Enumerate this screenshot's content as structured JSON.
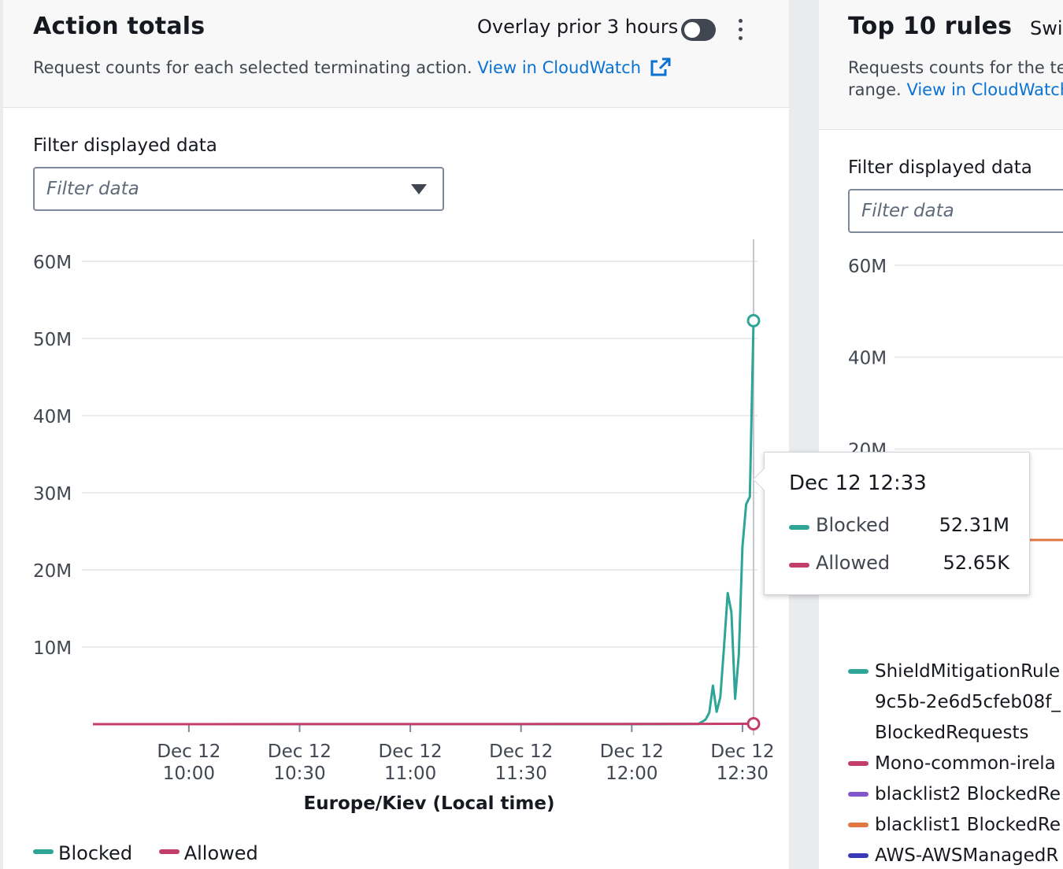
{
  "left_panel": {
    "title": "Action totals",
    "overlay_label": "Overlay prior 3 hours",
    "overlay_enabled": false,
    "description": "Request counts for each selected terminating action.",
    "link_text": "View in CloudWatch",
    "filter_label": "Filter displayed data",
    "filter_placeholder": "Filter data",
    "legend": [
      {
        "name": "Blocked",
        "color": "#2ea597"
      },
      {
        "name": "Allowed",
        "color": "#c33d69"
      }
    ]
  },
  "tooltip": {
    "title": "Dec 12 12:33",
    "rows": [
      {
        "label": "Blocked",
        "value": "52.31M",
        "color": "#2ea597"
      },
      {
        "label": "Allowed",
        "value": "52.65K",
        "color": "#c33d69"
      }
    ]
  },
  "right_panel": {
    "title": "Top 10 rules",
    "switch_text": "Swi",
    "description_line1": "Requests counts for the ter",
    "description_line2": "range.",
    "link_text": "View in CloudWatch",
    "filter_label": "Filter displayed data",
    "filter_placeholder": "Filter data",
    "legend": [
      {
        "lines": [
          "ShieldMitigationRule",
          "9c5b-2e6d5cfeb08f_",
          "BlockedRequests"
        ],
        "color": "#2ea597"
      },
      {
        "lines": [
          "Mono-common-irela"
        ],
        "color": "#c33d69"
      },
      {
        "lines": [
          "blacklist2 BlockedRe"
        ],
        "color": "#8456ce"
      },
      {
        "lines": [
          "blacklist1 BlockedRe"
        ],
        "color": "#e07941"
      },
      {
        "lines": [
          "AWS-AWSManagedR"
        ],
        "color": "#3a3ab8"
      }
    ]
  },
  "chart_data": [
    {
      "type": "line",
      "title": "Action totals",
      "xlabel": "Europe/Kiev (Local time)",
      "ylabel": "",
      "ylim": [
        0,
        60000000
      ],
      "y_ticks": [
        "10M",
        "20M",
        "30M",
        "40M",
        "50M",
        "60M"
      ],
      "x_ticks": [
        "Dec 12 10:00",
        "Dec 12 10:30",
        "Dec 12 11:00",
        "Dec 12 11:30",
        "Dec 12 12:00",
        "Dec 12 12:30"
      ],
      "x_tick_minutes": [
        0,
        30,
        60,
        90,
        120,
        150
      ],
      "xlim_minutes": [
        -26,
        153
      ],
      "grid": true,
      "legend_position": "bottom-left",
      "hover_minute": 153,
      "series": [
        {
          "name": "Blocked",
          "color": "#2ea597",
          "points": [
            [
              -26,
              0
            ],
            [
              120,
              0
            ],
            [
              138,
              20000
            ],
            [
              139,
              300000
            ],
            [
              140,
              600000
            ],
            [
              141,
              1500000
            ],
            [
              142,
              5000000
            ],
            [
              143,
              1600000
            ],
            [
              144,
              3500000
            ],
            [
              145,
              10000000
            ],
            [
              146,
              17000000
            ],
            [
              147,
              14500000
            ],
            [
              148,
              3300000
            ],
            [
              149,
              9000000
            ],
            [
              150,
              23000000
            ],
            [
              151,
              28500000
            ],
            [
              152,
              29500000
            ],
            [
              153,
              52310000
            ]
          ]
        },
        {
          "name": "Allowed",
          "color": "#c33d69",
          "points": [
            [
              -26,
              0
            ],
            [
              100,
              20000
            ],
            [
              140,
              40000
            ],
            [
              153,
              52650
            ]
          ]
        }
      ]
    },
    {
      "type": "line",
      "title": "Top 10 rules",
      "ylim": [
        0,
        60000000
      ],
      "y_ticks": [
        "20M",
        "40M",
        "60M"
      ],
      "grid": true,
      "series": []
    }
  ]
}
